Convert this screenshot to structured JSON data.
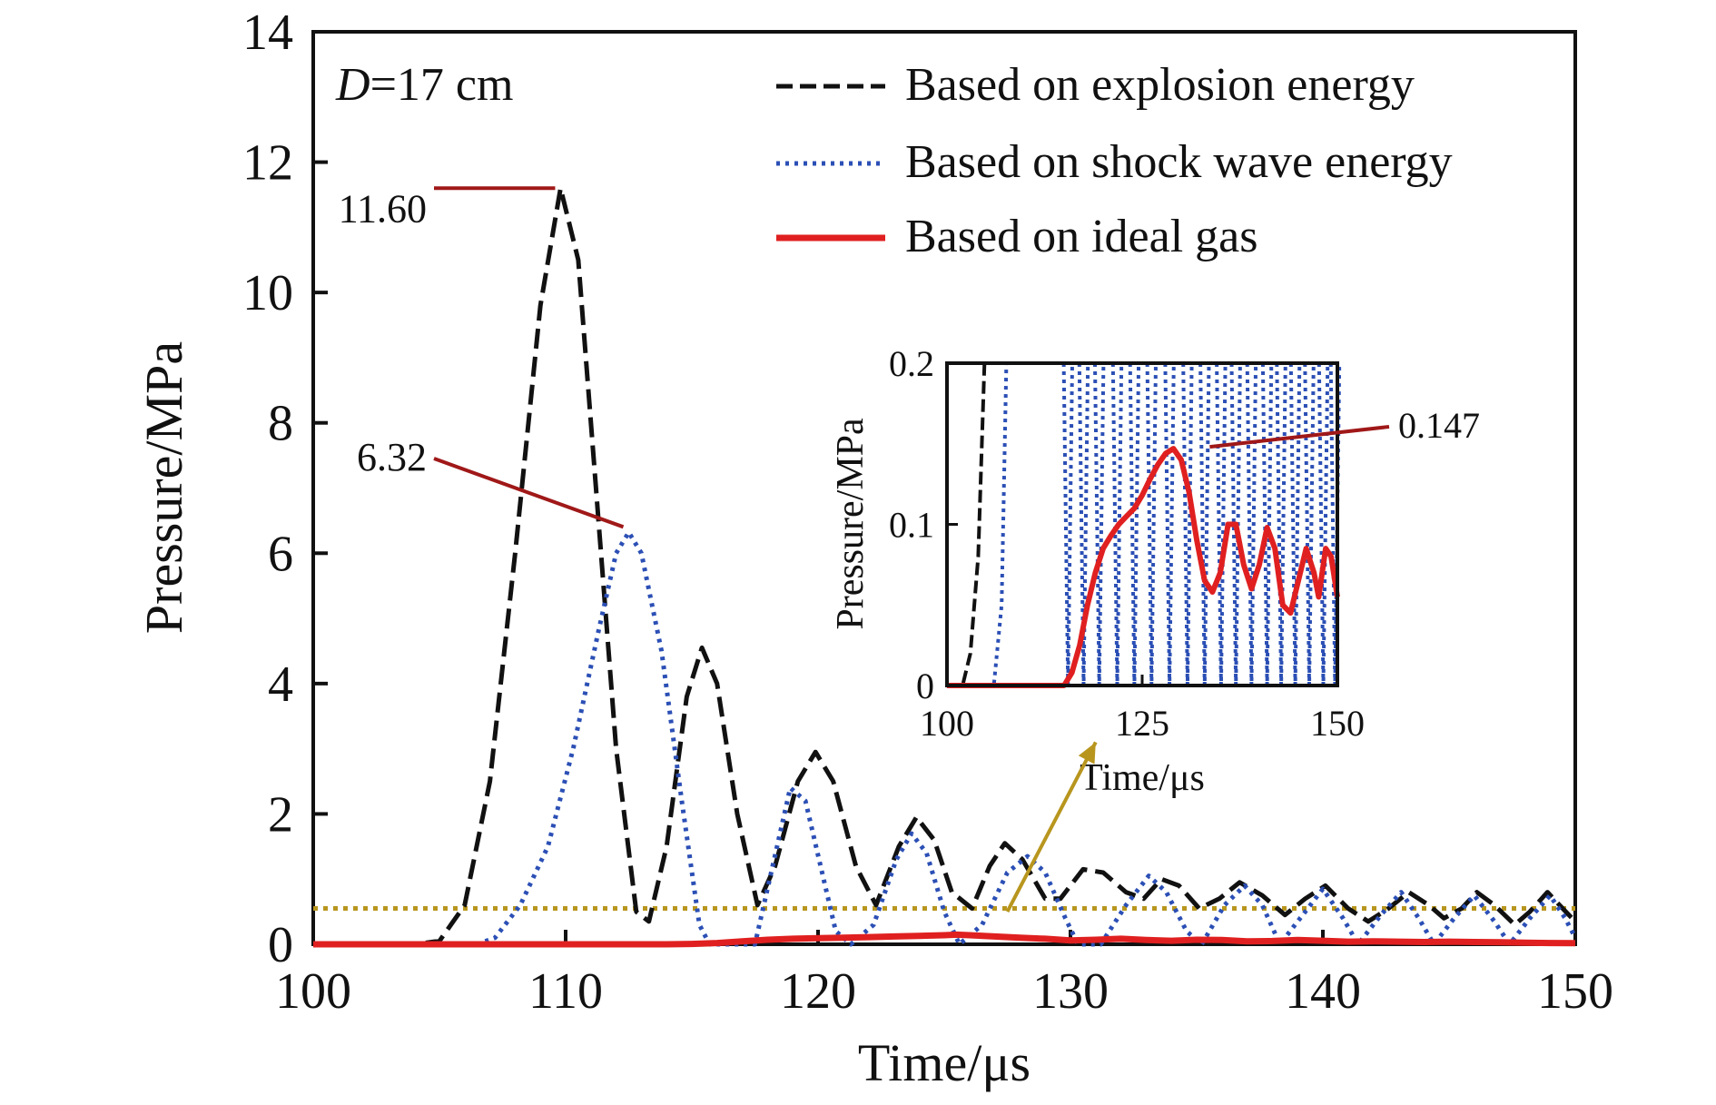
{
  "chart_data": {
    "type": "line",
    "xlabel": "Time/μs",
    "ylabel": "Pressure/MPa",
    "xlim": [
      100,
      150
    ],
    "ylim": [
      0,
      14
    ],
    "x_ticks": [
      "100",
      "110",
      "120",
      "130",
      "140",
      "150"
    ],
    "y_ticks": [
      "0",
      "2",
      "4",
      "6",
      "8",
      "10",
      "12",
      "14"
    ],
    "panel_label": {
      "italic": "D",
      "rest": "=17 cm"
    },
    "legend_position": "top-right",
    "series": [
      {
        "name": "Based on explosion energy",
        "color": "#111111",
        "style": "dashed",
        "points": [
          [
            100,
            0
          ],
          [
            104,
            0
          ],
          [
            105,
            0.05
          ],
          [
            106,
            0.6
          ],
          [
            107,
            2.5
          ],
          [
            108,
            6
          ],
          [
            109,
            9.8
          ],
          [
            109.8,
            11.6
          ],
          [
            110.5,
            10.5
          ],
          [
            111.2,
            7
          ],
          [
            112,
            3
          ],
          [
            112.8,
            0.5
          ],
          [
            113.3,
            0.35
          ],
          [
            114,
            1.5
          ],
          [
            114.8,
            3.8
          ],
          [
            115.4,
            4.55
          ],
          [
            116,
            4
          ],
          [
            116.8,
            2
          ],
          [
            117.6,
            0.6
          ],
          [
            118.3,
            1.2
          ],
          [
            119.2,
            2.5
          ],
          [
            119.9,
            2.95
          ],
          [
            120.6,
            2.5
          ],
          [
            121.5,
            1.2
          ],
          [
            122.3,
            0.6
          ],
          [
            123.2,
            1.5
          ],
          [
            123.9,
            1.95
          ],
          [
            124.6,
            1.6
          ],
          [
            125.3,
            0.8
          ],
          [
            126.1,
            0.55
          ],
          [
            126.8,
            1.2
          ],
          [
            127.4,
            1.55
          ],
          [
            128.1,
            1.3
          ],
          [
            129,
            0.7
          ],
          [
            129.6,
            0.7
          ],
          [
            130.5,
            1.15
          ],
          [
            131.3,
            1.1
          ],
          [
            132.2,
            0.8
          ],
          [
            132.9,
            0.7
          ],
          [
            133.6,
            1.0
          ],
          [
            134.3,
            0.9
          ],
          [
            135.1,
            0.55
          ],
          [
            135.9,
            0.7
          ],
          [
            136.7,
            0.95
          ],
          [
            137.6,
            0.75
          ],
          [
            138.5,
            0.45
          ],
          [
            139.3,
            0.7
          ],
          [
            140.1,
            0.9
          ],
          [
            141,
            0.55
          ],
          [
            141.8,
            0.35
          ],
          [
            142.6,
            0.55
          ],
          [
            143.4,
            0.8
          ],
          [
            144.2,
            0.6
          ],
          [
            144.8,
            0.4
          ],
          [
            145.5,
            0.55
          ],
          [
            146.1,
            0.8
          ],
          [
            146.8,
            0.6
          ],
          [
            147.6,
            0.3
          ],
          [
            148.2,
            0.5
          ],
          [
            148.9,
            0.8
          ],
          [
            149.5,
            0.55
          ],
          [
            150,
            0.35
          ]
        ]
      },
      {
        "name": "Based on shock wave energy",
        "color": "#2b4fb5",
        "style": "dotted",
        "points": [
          [
            100,
            0
          ],
          [
            106.5,
            0
          ],
          [
            107.2,
            0.1
          ],
          [
            108.2,
            0.6
          ],
          [
            109.3,
            1.5
          ],
          [
            110.3,
            3
          ],
          [
            111.3,
            4.8
          ],
          [
            112,
            6
          ],
          [
            112.5,
            6.32
          ],
          [
            113,
            6
          ],
          [
            113.8,
            4.5
          ],
          [
            114.6,
            2.2
          ],
          [
            115.3,
            0.3
          ],
          [
            115.7,
            0
          ],
          [
            117.5,
            0
          ],
          [
            118.2,
            1.2
          ],
          [
            118.9,
            2.4
          ],
          [
            119.5,
            2.2
          ],
          [
            120.1,
            1.2
          ],
          [
            120.7,
            0.2
          ],
          [
            121.3,
            0
          ],
          [
            122.2,
            0.3
          ],
          [
            123.1,
            1.3
          ],
          [
            123.7,
            1.7
          ],
          [
            124.3,
            1.4
          ],
          [
            125,
            0.5
          ],
          [
            125.6,
            0
          ],
          [
            126.5,
            0.3
          ],
          [
            127.5,
            1.1
          ],
          [
            128.3,
            1.35
          ],
          [
            129,
            1.1
          ],
          [
            129.8,
            0.4
          ],
          [
            130.3,
            0
          ],
          [
            131.2,
            0
          ],
          [
            132.2,
            0.6
          ],
          [
            133.1,
            1.05
          ],
          [
            133.8,
            0.8
          ],
          [
            134.6,
            0.2
          ],
          [
            135.2,
            0
          ],
          [
            136.1,
            0.6
          ],
          [
            136.9,
            0.9
          ],
          [
            137.6,
            0.6
          ],
          [
            138.3,
            0
          ],
          [
            139.2,
            0.45
          ],
          [
            140,
            0.85
          ],
          [
            140.8,
            0.4
          ],
          [
            141.4,
            0
          ],
          [
            142.3,
            0.45
          ],
          [
            143.1,
            0.8
          ],
          [
            143.8,
            0.4
          ],
          [
            144.4,
            0
          ],
          [
            145.2,
            0.4
          ],
          [
            146,
            0.75
          ],
          [
            146.8,
            0.35
          ],
          [
            147.4,
            0
          ],
          [
            148.2,
            0.4
          ],
          [
            149,
            0.75
          ],
          [
            149.6,
            0.4
          ],
          [
            150,
            0.1
          ]
        ]
      },
      {
        "name": "Based on ideal gas",
        "color": "#e02020",
        "style": "solid",
        "points": [
          [
            100,
            0
          ],
          [
            114,
            0
          ],
          [
            115,
            0.005
          ],
          [
            116,
            0.02
          ],
          [
            117,
            0.045
          ],
          [
            118,
            0.07
          ],
          [
            119,
            0.085
          ],
          [
            120,
            0.095
          ],
          [
            121,
            0.1
          ],
          [
            122,
            0.11
          ],
          [
            123,
            0.12
          ],
          [
            124,
            0.13
          ],
          [
            125,
            0.14
          ],
          [
            125.5,
            0.147
          ],
          [
            126,
            0.14
          ],
          [
            127,
            0.12
          ],
          [
            128,
            0.1
          ],
          [
            129,
            0.085
          ],
          [
            130,
            0.06
          ],
          [
            131,
            0.07
          ],
          [
            132,
            0.085
          ],
          [
            133,
            0.065
          ],
          [
            134,
            0.055
          ],
          [
            135,
            0.07
          ],
          [
            136,
            0.065
          ],
          [
            137,
            0.045
          ],
          [
            138,
            0.05
          ],
          [
            139,
            0.065
          ],
          [
            140,
            0.055
          ],
          [
            141,
            0.04
          ],
          [
            142,
            0.045
          ],
          [
            143,
            0.04
          ],
          [
            144,
            0.035
          ],
          [
            145,
            0.04
          ],
          [
            146,
            0.035
          ],
          [
            147,
            0.03
          ],
          [
            148,
            0.025
          ],
          [
            149,
            0.02
          ],
          [
            150,
            0.018
          ]
        ]
      }
    ],
    "threshold_line": {
      "y": 0.55,
      "color": "#b8961e",
      "style": "dotted"
    },
    "annotations": [
      {
        "text": "11.60",
        "x": 109.8,
        "y": 11.6
      },
      {
        "text": "6.32",
        "x": 112.5,
        "y": 6.32
      }
    ],
    "inset": {
      "xlabel": "Time/μs",
      "ylabel": "Pressure/MPa",
      "xlim": [
        100,
        150
      ],
      "ylim": [
        0,
        0.2
      ],
      "x_ticks": [
        "100",
        "125",
        "150"
      ],
      "y_ticks": [
        "0",
        "0.1",
        "0.2"
      ],
      "annotation": {
        "text": "0.147",
        "x": 129,
        "y": 0.147
      },
      "series": [
        {
          "name": "Based on explosion energy",
          "points": [
            [
              100,
              0
            ],
            [
              102,
              0
            ],
            [
              103,
              0.02
            ],
            [
              104,
              0.08
            ],
            [
              104.8,
              0.2
            ]
          ]
        },
        {
          "name": "Based on shock wave energy",
          "points": [
            [
              100,
              0
            ],
            [
              106,
              0
            ],
            [
              107,
              0.05
            ],
            [
              107.6,
              0.2
            ]
          ],
          "oscillation_centers": [
            115.5,
            117.5,
            119.5,
            121.8,
            124,
            126.2,
            128.5,
            130.8,
            133,
            135.1,
            137,
            139,
            141,
            142.8,
            144.6,
            146.4,
            148.2,
            149.7
          ]
        },
        {
          "name": "Based on ideal gas",
          "points": [
            [
              100,
              0
            ],
            [
              115,
              0
            ],
            [
              116,
              0.008
            ],
            [
              117,
              0.025
            ],
            [
              118,
              0.05
            ],
            [
              119,
              0.07
            ],
            [
              120,
              0.085
            ],
            [
              121,
              0.093
            ],
            [
              122,
              0.1
            ],
            [
              123,
              0.105
            ],
            [
              124,
              0.11
            ],
            [
              125,
              0.118
            ],
            [
              126,
              0.128
            ],
            [
              127,
              0.137
            ],
            [
              128,
              0.144
            ],
            [
              129,
              0.147
            ],
            [
              130,
              0.14
            ],
            [
              131,
              0.12
            ],
            [
              132,
              0.09
            ],
            [
              133,
              0.065
            ],
            [
              134,
              0.058
            ],
            [
              135,
              0.07
            ],
            [
              136,
              0.1
            ],
            [
              137,
              0.1
            ],
            [
              138,
              0.075
            ],
            [
              139,
              0.06
            ],
            [
              140,
              0.075
            ],
            [
              141,
              0.098
            ],
            [
              142,
              0.085
            ],
            [
              143,
              0.05
            ],
            [
              144,
              0.045
            ],
            [
              145,
              0.065
            ],
            [
              146,
              0.085
            ],
            [
              147,
              0.07
            ],
            [
              147.6,
              0.055
            ],
            [
              148.5,
              0.085
            ],
            [
              149.2,
              0.08
            ],
            [
              150,
              0.055
            ]
          ]
        }
      ]
    },
    "arrow": {
      "from": [
        127.5,
        0.5
      ],
      "to": [
        131,
        3.1
      ],
      "color": "#b8961e"
    }
  }
}
